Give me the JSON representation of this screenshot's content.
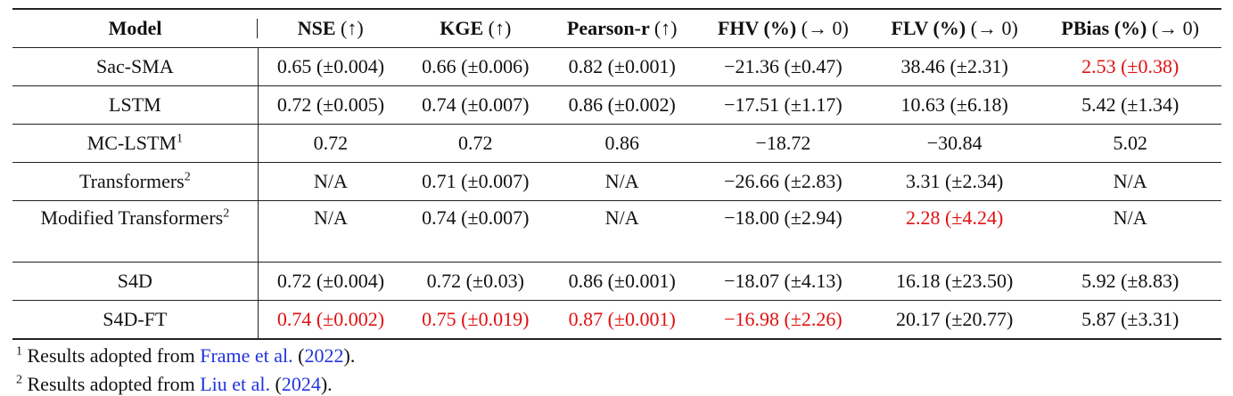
{
  "header": {
    "model": "Model",
    "columns": [
      {
        "name": "NSE",
        "target": "(↑)"
      },
      {
        "name": "KGE",
        "target": "(↑)"
      },
      {
        "name": "Pearson-r",
        "target": "(↑)"
      },
      {
        "name": "FHV (%)",
        "target": "(→ 0)"
      },
      {
        "name": "FLV (%)",
        "target": "(→ 0)"
      },
      {
        "name": "PBias (%)",
        "target": "(→ 0)"
      }
    ]
  },
  "table": {
    "rows": [
      {
        "model": "Sac-SMA",
        "cells": [
          "0.65 (±0.004)",
          "0.66 (±0.006)",
          "0.82 (±0.001)",
          "−21.36 (±0.47)",
          "38.46 (±2.31)",
          "2.53 (±0.38)"
        ],
        "best": [
          5
        ]
      },
      {
        "model": "LSTM",
        "cells": [
          "0.72 (±0.005)",
          "0.74 (±0.007)",
          "0.86 (±0.002)",
          "−17.51 (±1.17)",
          "10.63 (±6.18)",
          "5.42 (±1.34)"
        ],
        "best": []
      },
      {
        "model": "MC-LSTM",
        "note": "1",
        "cells": [
          "0.72",
          "0.72",
          "0.86",
          "−18.72",
          "−30.84",
          "5.02"
        ],
        "best": []
      },
      {
        "model": "Transformers",
        "note": "2",
        "cells": [
          "N/A",
          "0.71 (±0.007)",
          "N/A",
          "−26.66 (±2.83)",
          "3.31 (±2.34)",
          "N/A"
        ],
        "best": []
      },
      {
        "model": "Modified Transformers",
        "note": "2",
        "cells": [
          "N/A",
          "0.74 (±0.007)",
          "N/A",
          "−18.00 (±2.94)",
          "2.28 (±4.24)",
          "N/A"
        ],
        "best": [
          4
        ]
      },
      {
        "model": "S4D",
        "cells": [
          "0.72 (±0.004)",
          "0.72 (±0.03)",
          "0.86 (±0.001)",
          "−18.07 (±4.13)",
          "16.18 (±23.50)",
          "5.92 (±8.83)"
        ],
        "best": []
      },
      {
        "model": "S4D-FT",
        "cells": [
          "0.74 (±0.002)",
          "0.75 (±0.019)",
          "0.87 (±0.001)",
          "−16.98 (±2.26)",
          "20.17 (±20.77)",
          "5.87 (±3.31)"
        ],
        "best": [
          0,
          1,
          2,
          3
        ]
      }
    ]
  },
  "footnotes": [
    {
      "mark": "1",
      "parts": [
        {
          "text": "Results adopted from "
        },
        {
          "text": "Frame et al.",
          "link": true
        },
        {
          "text": " ("
        },
        {
          "text": "2022",
          "link": true
        },
        {
          "text": ")."
        }
      ]
    },
    {
      "mark": "2",
      "parts": [
        {
          "text": "Results adopted from "
        },
        {
          "text": "Liu et al.",
          "link": true
        },
        {
          "text": " ("
        },
        {
          "text": "2024",
          "link": true
        },
        {
          "text": ")."
        }
      ]
    }
  ]
}
